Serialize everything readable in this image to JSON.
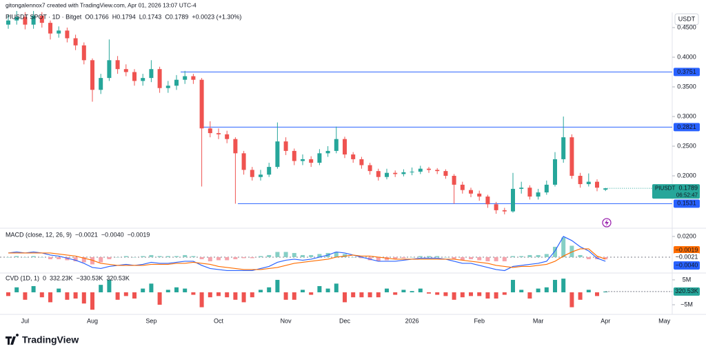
{
  "header": "gitongalennox7 created with TradingView.com, Apr 01, 2026 13:07 UTC-4",
  "brand": "TradingView",
  "currency": "USDT",
  "chart_data": [
    {
      "type": "candlestick",
      "title": "PIUSDT SPOT · 1D · Bitget",
      "legend": [
        "O0.1766",
        "H0.1794",
        "L0.1743",
        "C0.1789",
        "+0.0023 (+1.30%)"
      ],
      "symbol": "PIUSDT",
      "countdown": "06:52:47",
      "color_up": "#26a69a",
      "color_down": "#ef5350",
      "categories": [
        null,
        null,
        "Jul",
        null,
        null,
        null,
        null,
        null,
        null,
        null,
        "Aug",
        null,
        null,
        null,
        null,
        null,
        null,
        "Sep",
        null,
        null,
        null,
        null,
        null,
        null,
        null,
        "Oct",
        null,
        null,
        null,
        null,
        null,
        null,
        null,
        "Nov",
        null,
        null,
        null,
        null,
        null,
        null,
        "Dec",
        null,
        null,
        null,
        null,
        null,
        null,
        null,
        "2026",
        null,
        null,
        null,
        null,
        null,
        null,
        null,
        "Feb",
        null,
        null,
        null,
        null,
        null,
        null,
        "Mar",
        null,
        null,
        null,
        null,
        null,
        null,
        null,
        "Apr",
        null,
        null,
        null,
        null,
        null,
        null,
        "May"
      ],
      "open": [
        0.455,
        0.462,
        0.468,
        0.455,
        0.47,
        0.458,
        0.44,
        0.445,
        0.432,
        0.42,
        0.395,
        0.345,
        0.365,
        0.395,
        0.38,
        0.375,
        0.36,
        0.365,
        0.38,
        0.348,
        0.352,
        0.362,
        0.368,
        0.362,
        0.28,
        0.272,
        0.27,
        0.262,
        0.238,
        0.21,
        0.198,
        0.202,
        0.215,
        0.258,
        0.242,
        0.225,
        0.228,
        0.222,
        0.238,
        0.242,
        0.262,
        0.236,
        0.228,
        0.218,
        0.208,
        0.198,
        0.205,
        0.203,
        0.206,
        0.207,
        0.212,
        0.21,
        0.208,
        0.2,
        0.185,
        0.176,
        0.17,
        0.165,
        0.152,
        0.142,
        0.14,
        0.178,
        0.18,
        0.165,
        0.172,
        0.185,
        0.228,
        0.265,
        0.2,
        0.186,
        0.19,
        0.1766,
        null,
        null,
        null,
        null,
        null,
        null,
        null
      ],
      "high": [
        0.472,
        0.478,
        0.476,
        0.478,
        0.476,
        0.462,
        0.452,
        0.45,
        0.438,
        0.425,
        0.398,
        0.372,
        0.43,
        0.402,
        0.388,
        0.38,
        0.372,
        0.395,
        0.384,
        0.36,
        0.37,
        0.377,
        0.372,
        0.365,
        0.292,
        0.28,
        0.276,
        0.265,
        0.242,
        0.215,
        0.21,
        0.222,
        0.29,
        0.265,
        0.246,
        0.236,
        0.233,
        0.245,
        0.25,
        0.283,
        0.266,
        0.24,
        0.232,
        0.222,
        0.212,
        0.212,
        0.209,
        0.211,
        0.214,
        0.217,
        0.215,
        0.213,
        0.211,
        0.203,
        0.19,
        0.18,
        0.175,
        0.168,
        0.156,
        0.146,
        0.205,
        0.19,
        0.184,
        0.178,
        0.192,
        0.24,
        0.3,
        0.27,
        0.205,
        0.204,
        0.194,
        0.1794,
        null,
        null,
        null,
        null,
        null,
        null,
        null
      ],
      "low": [
        0.448,
        0.455,
        0.447,
        0.448,
        0.45,
        0.43,
        0.433,
        0.425,
        0.412,
        0.388,
        0.325,
        0.338,
        0.36,
        0.372,
        0.368,
        0.352,
        0.352,
        0.358,
        0.34,
        0.34,
        0.345,
        0.355,
        0.355,
        0.182,
        0.265,
        0.262,
        0.255,
        0.153,
        0.202,
        0.192,
        0.192,
        0.198,
        0.212,
        0.235,
        0.218,
        0.218,
        0.215,
        0.218,
        0.232,
        0.238,
        0.23,
        0.222,
        0.212,
        0.202,
        0.192,
        0.194,
        0.198,
        0.199,
        0.201,
        0.203,
        0.205,
        0.203,
        0.195,
        0.153,
        0.17,
        0.164,
        0.158,
        0.146,
        0.136,
        0.135,
        0.138,
        0.17,
        0.16,
        0.16,
        0.168,
        0.182,
        0.222,
        0.195,
        0.18,
        0.182,
        0.174,
        0.1743,
        null,
        null,
        null,
        null,
        null,
        null,
        null
      ],
      "close": [
        0.462,
        0.468,
        0.455,
        0.47,
        0.458,
        0.44,
        0.445,
        0.432,
        0.42,
        0.395,
        0.345,
        0.365,
        0.395,
        0.38,
        0.375,
        0.36,
        0.365,
        0.38,
        0.348,
        0.352,
        0.362,
        0.368,
        0.362,
        0.28,
        0.272,
        0.27,
        0.262,
        0.238,
        0.21,
        0.198,
        0.202,
        0.215,
        0.258,
        0.242,
        0.225,
        0.228,
        0.222,
        0.238,
        0.242,
        0.262,
        0.236,
        0.228,
        0.218,
        0.208,
        0.198,
        0.205,
        0.203,
        0.206,
        0.207,
        0.212,
        0.21,
        0.208,
        0.2,
        0.185,
        0.176,
        0.17,
        0.165,
        0.152,
        0.142,
        0.14,
        0.178,
        0.18,
        0.165,
        0.172,
        0.185,
        0.228,
        0.265,
        0.2,
        0.186,
        0.19,
        0.18,
        0.1789,
        null,
        null,
        null,
        null,
        null,
        null,
        null
      ],
      "levels": [
        {
          "value": 0.3751,
          "label": "0.3751"
        },
        {
          "value": 0.2821,
          "label": "0.2821"
        },
        {
          "value": 0.1531,
          "label": "0.1531"
        }
      ],
      "level_color": "#2962ff",
      "ylim": [
        0.1128,
        0.4756
      ],
      "yticks": [
        {
          "value": 0.45,
          "label": "0.4500"
        },
        {
          "value": 0.4,
          "label": "0.4000"
        },
        {
          "value": 0.35,
          "label": "0.3500"
        },
        {
          "value": 0.3,
          "label": "0.3000"
        },
        {
          "value": 0.25,
          "label": "0.2500"
        },
        {
          "value": 0.2,
          "label": "0.2000"
        }
      ]
    },
    {
      "type": "macd",
      "title": "MACD (close, 12, 26, 9)",
      "histogram": {
        "color_up": "#86cfc5",
        "color_down": "#f5a3ab",
        "last_label": "−0.0021",
        "values": [
          0,
          0.001,
          0,
          0.001,
          0,
          -0.002,
          -0.002,
          -0.003,
          -0.004,
          -0.005,
          -0.007,
          -0.005,
          -0.002,
          0,
          0.001,
          0,
          0.001,
          0.002,
          0.001,
          0.001,
          0.001,
          0.002,
          0.001,
          -0.002,
          -0.004,
          -0.003,
          -0.003,
          -0.002,
          -0.001,
          -0.001,
          0.001,
          0.002,
          0.005,
          0.005,
          0.004,
          0.002,
          0.002,
          0.003,
          0.004,
          0.005,
          0.003,
          0,
          -0.001,
          -0.003,
          -0.004,
          -0.003,
          -0.002,
          -0.001,
          0,
          0.001,
          0.001,
          0.001,
          0,
          -0.002,
          -0.003,
          -0.002,
          -0.003,
          -0.004,
          -0.004,
          -0.004,
          0.001,
          0.001,
          0.002,
          0.002,
          0.003,
          0.01,
          0.019,
          0.011,
          0.002,
          -0.002,
          -0.002,
          -0.0021,
          null,
          null,
          null,
          null,
          null,
          null,
          null
        ]
      },
      "macd": {
        "color": "#2962ff",
        "last_label": "−0.0040",
        "values": [
          0.004,
          0.005,
          0.004,
          0.005,
          0.004,
          0.002,
          0.001,
          -0.001,
          -0.003,
          -0.006,
          -0.01,
          -0.011,
          -0.009,
          -0.008,
          -0.007,
          -0.008,
          -0.007,
          -0.005,
          -0.006,
          -0.006,
          -0.005,
          -0.004,
          -0.004,
          -0.008,
          -0.011,
          -0.012,
          -0.013,
          -0.013,
          -0.013,
          -0.013,
          -0.011,
          -0.009,
          -0.005,
          -0.003,
          -0.002,
          -0.003,
          -0.002,
          0.0,
          0.002,
          0.005,
          0.004,
          0.002,
          0.0,
          -0.002,
          -0.004,
          -0.004,
          -0.004,
          -0.003,
          -0.002,
          -0.001,
          -0.001,
          -0.001,
          -0.002,
          -0.004,
          -0.006,
          -0.006,
          -0.008,
          -0.01,
          -0.012,
          -0.013,
          -0.009,
          -0.008,
          -0.007,
          -0.006,
          -0.004,
          0.006,
          0.02,
          0.016,
          0.01,
          0.006,
          -0.001,
          -0.004,
          null,
          null,
          null,
          null,
          null,
          null,
          null
        ]
      },
      "signal": {
        "color": "#ff6d00",
        "last_label": "−0.0019",
        "values": [
          0.004,
          0.004,
          0.004,
          0.004,
          0.004,
          0.004,
          0.003,
          0.002,
          0.001,
          -0.001,
          -0.003,
          -0.006,
          -0.007,
          -0.008,
          -0.008,
          -0.008,
          -0.008,
          -0.007,
          -0.007,
          -0.007,
          -0.006,
          -0.006,
          -0.005,
          -0.006,
          -0.007,
          -0.009,
          -0.01,
          -0.011,
          -0.012,
          -0.012,
          -0.012,
          -0.011,
          -0.01,
          -0.008,
          -0.006,
          -0.005,
          -0.004,
          -0.003,
          -0.002,
          0.0,
          0.001,
          0.002,
          0.001,
          0.001,
          0.0,
          -0.001,
          -0.002,
          -0.002,
          -0.002,
          -0.002,
          -0.002,
          -0.002,
          -0.002,
          -0.002,
          -0.003,
          -0.004,
          -0.005,
          -0.006,
          -0.008,
          -0.009,
          -0.01,
          -0.009,
          -0.009,
          -0.008,
          -0.007,
          -0.004,
          0.001,
          0.005,
          0.008,
          0.008,
          0.001,
          -0.0019,
          null,
          null,
          null,
          null,
          null,
          null,
          null
        ]
      },
      "ylim": [
        -0.0147,
        0.0253
      ],
      "yticks": [
        {
          "value": 0.02,
          "label": "0.0200"
        }
      ]
    },
    {
      "type": "cvd",
      "title": "CVD (1D, 1)",
      "legend": [
        "0",
        "332.23K",
        "−330.53K",
        "320.53K"
      ],
      "color_up": "#26a69a",
      "color_down": "#ef5350",
      "values": [
        -1.5,
        2,
        -3,
        2.5,
        -2,
        -4,
        1.5,
        -3,
        -2.5,
        -4.5,
        -7,
        3,
        5,
        -3,
        -1.5,
        -2.5,
        1.5,
        3.5,
        -5,
        1,
        2,
        1.5,
        -1,
        -6,
        -2,
        -1.5,
        -2,
        -3,
        -4,
        -2,
        1,
        2,
        5,
        -3,
        -3,
        1,
        -1,
        2.5,
        1.5,
        3.5,
        -4,
        -2,
        -2,
        -2,
        -2,
        1.5,
        -1,
        1,
        0.5,
        1.5,
        -0.5,
        -1,
        -1.5,
        -3,
        -2,
        -1.5,
        -1.5,
        -2.5,
        -2.5,
        -1,
        5,
        1,
        -2.5,
        1.5,
        2,
        5,
        5.5,
        -6,
        -3,
        1,
        -1.5,
        0.32053,
        null,
        null,
        null,
        null,
        null,
        null,
        null
      ],
      "value_labels": [
        null,
        null,
        null,
        null,
        null,
        null,
        null,
        null,
        null,
        null,
        null,
        null,
        null,
        null,
        null,
        null,
        null,
        null,
        null,
        null,
        null,
        null,
        null,
        null,
        null,
        null,
        null,
        null,
        null,
        null,
        null,
        null,
        null,
        null,
        null,
        null,
        null,
        null,
        null,
        null,
        null,
        null,
        null,
        null,
        null,
        null,
        null,
        null,
        null,
        null,
        null,
        null,
        null,
        null,
        null,
        null,
        null,
        null,
        null,
        null,
        null,
        null,
        null,
        null,
        null,
        null,
        null,
        null,
        null,
        null,
        null,
        "320.53K",
        null,
        null,
        null,
        null,
        null,
        null,
        null
      ],
      "ylim": [
        -8.6,
        7.2
      ],
      "yticks": [
        {
          "value": 5,
          "label": "5M"
        },
        {
          "value": -5,
          "label": "−5M"
        }
      ]
    }
  ]
}
